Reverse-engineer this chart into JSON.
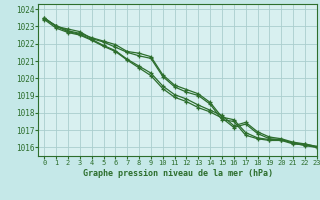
{
  "title": "Graphe pression niveau de la mer (hPa)",
  "background_color": "#c5e8e8",
  "plot_bg_color": "#d8f0f0",
  "grid_color": "#aacece",
  "line_color": "#2d6e2d",
  "xlim": [
    -0.5,
    23
  ],
  "ylim": [
    1015.5,
    1024.3
  ],
  "yticks": [
    1016,
    1017,
    1018,
    1019,
    1020,
    1021,
    1022,
    1023,
    1024
  ],
  "xticks": [
    0,
    1,
    2,
    3,
    4,
    5,
    6,
    7,
    8,
    9,
    10,
    11,
    12,
    13,
    14,
    15,
    16,
    17,
    18,
    19,
    20,
    21,
    22,
    23
  ],
  "series": [
    [
      1023.5,
      1023.0,
      1022.85,
      1022.7,
      1022.3,
      1022.1,
      1021.8,
      1021.5,
      1021.3,
      1021.15,
      1020.1,
      1019.5,
      1019.2,
      1019.0,
      1018.5,
      1017.6,
      1017.5,
      1016.7,
      1016.5,
      1016.4,
      1016.4,
      1016.2,
      1016.15,
      1016.0
    ],
    [
      1023.5,
      1023.0,
      1022.7,
      1022.55,
      1022.25,
      1021.9,
      1021.6,
      1021.1,
      1020.7,
      1020.3,
      1019.55,
      1019.05,
      1018.8,
      1018.45,
      1018.15,
      1017.85,
      1017.25,
      1017.45,
      1016.9,
      1016.6,
      1016.5,
      1016.3,
      1016.2,
      1016.05
    ],
    [
      1023.45,
      1023.05,
      1022.75,
      1022.6,
      1022.35,
      1022.15,
      1021.95,
      1021.55,
      1021.45,
      1021.25,
      1020.2,
      1019.6,
      1019.35,
      1019.1,
      1018.6,
      1017.75,
      1017.6,
      1016.85,
      1016.55,
      1016.45,
      1016.45,
      1016.25,
      1016.18,
      1016.05
    ],
    [
      1023.4,
      1022.9,
      1022.65,
      1022.5,
      1022.2,
      1021.85,
      1021.55,
      1021.05,
      1020.6,
      1020.15,
      1019.4,
      1018.9,
      1018.65,
      1018.3,
      1018.05,
      1017.7,
      1017.15,
      1017.35,
      1016.8,
      1016.5,
      1016.45,
      1016.25,
      1016.1,
      1016.0
    ]
  ]
}
